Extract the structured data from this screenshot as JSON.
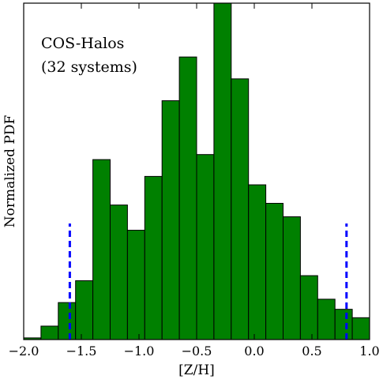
{
  "chart_data": {
    "type": "bar",
    "xlabel": "[Z/H]",
    "ylabel": "Normalized PDF",
    "xlim": [
      -2.0,
      1.0
    ],
    "ylim": [
      0,
      1.0
    ],
    "x_ticks": [
      -2.0,
      -1.5,
      -1.0,
      -0.5,
      0.0,
      0.5,
      1.0
    ],
    "x_tick_labels": [
      "−2.0",
      "−1.5",
      "−1.0",
      "−0.5",
      "0.0",
      "0.5",
      "1.0"
    ],
    "y_tick_labels_shown": false,
    "bin_width": 0.15,
    "bins": [
      {
        "x0": -2.0,
        "x1": -1.85,
        "value": 0.005
      },
      {
        "x0": -1.85,
        "x1": -1.7,
        "value": 0.04
      },
      {
        "x0": -1.7,
        "x1": -1.55,
        "value": 0.11
      },
      {
        "x0": -1.55,
        "x1": -1.4,
        "value": 0.175
      },
      {
        "x0": -1.4,
        "x1": -1.25,
        "value": 0.535
      },
      {
        "x0": -1.25,
        "x1": -1.1,
        "value": 0.4
      },
      {
        "x0": -1.1,
        "x1": -0.95,
        "value": 0.325
      },
      {
        "x0": -0.95,
        "x1": -0.8,
        "value": 0.485
      },
      {
        "x0": -0.8,
        "x1": -0.65,
        "value": 0.71
      },
      {
        "x0": -0.65,
        "x1": -0.5,
        "value": 0.84
      },
      {
        "x0": -0.5,
        "x1": -0.35,
        "value": 0.55
      },
      {
        "x0": -0.35,
        "x1": -0.2,
        "value": 1.0
      },
      {
        "x0": -0.2,
        "x1": -0.05,
        "value": 0.775
      },
      {
        "x0": -0.05,
        "x1": 0.1,
        "value": 0.46
      },
      {
        "x0": 0.1,
        "x1": 0.25,
        "value": 0.405
      },
      {
        "x0": 0.25,
        "x1": 0.4,
        "value": 0.365
      },
      {
        "x0": 0.4,
        "x1": 0.55,
        "value": 0.19
      },
      {
        "x0": 0.55,
        "x1": 0.7,
        "value": 0.12
      },
      {
        "x0": 0.7,
        "x1": 0.85,
        "value": 0.09
      },
      {
        "x0": 0.85,
        "x1": 1.0,
        "value": 0.065
      }
    ],
    "bar_color": "#008000",
    "bar_edge_color": "#000000",
    "reference_lines": [
      {
        "x": -1.6,
        "y_top": 0.345,
        "style": "dashed",
        "color": "#0000ff"
      },
      {
        "x": 0.8,
        "y_top": 0.345,
        "style": "dashed",
        "color": "#0000ff"
      }
    ],
    "annotation_lines": [
      "COS-Halos",
      "(32 systems)"
    ]
  }
}
